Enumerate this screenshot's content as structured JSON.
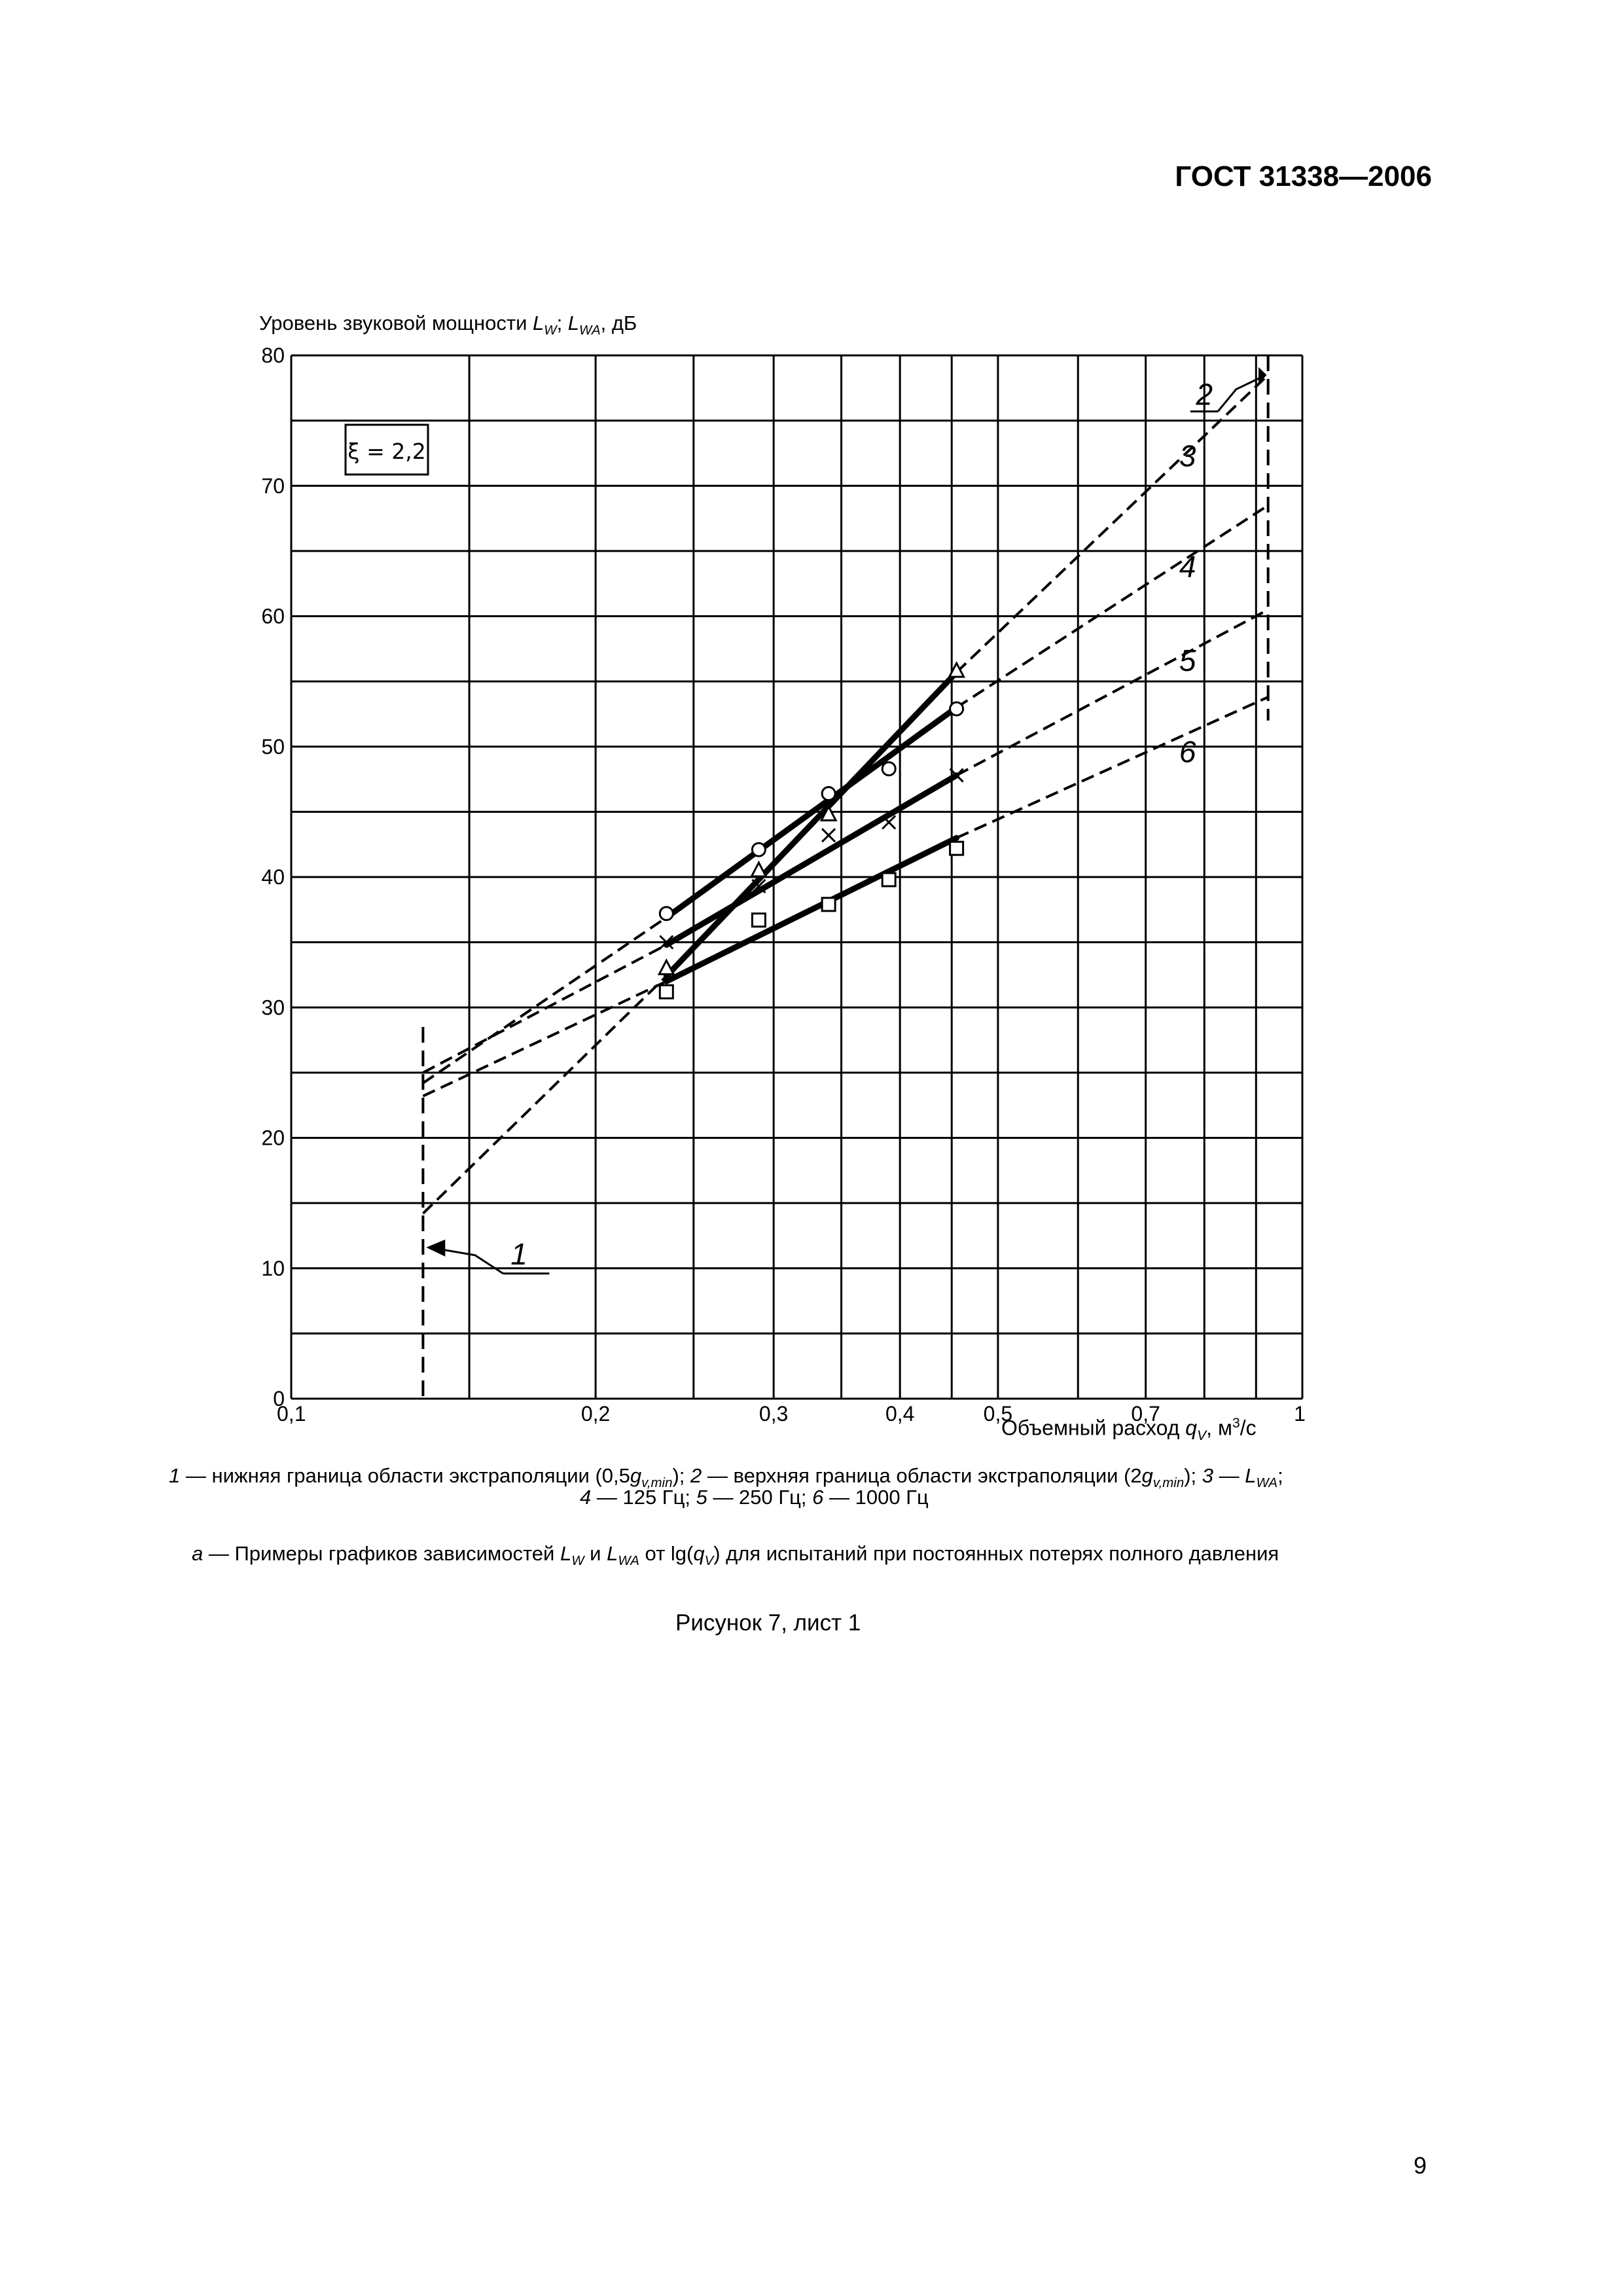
{
  "document": {
    "header": "ГОСТ 31338—2006",
    "page_number": "9",
    "figure_title": "Рисунок 7, лист 1"
  },
  "axes": {
    "ylabel_parts": [
      "Уровень звуковой мощности ",
      "L",
      "W",
      "; ",
      "L",
      "WA",
      ", дБ"
    ],
    "xlabel_parts": [
      "Объемный расход ",
      "q",
      "V",
      ", м",
      "3",
      "/с"
    ]
  },
  "legend_box": "ξ = 2,2",
  "caption": {
    "line1_parts": [
      "1",
      " — нижняя граница области экстраполяции (0,5",
      "g",
      "v,min",
      "); ",
      "2",
      " — верхняя граница области экстраполяции (2",
      "g",
      "v,min",
      "); ",
      "3",
      " — ",
      "L",
      "WA",
      ";"
    ],
    "line2_parts": [
      "4",
      " — 125 Гц; ",
      "5",
      " — 250 Гц; ",
      "6",
      " — 1000 Гц"
    ],
    "note_parts": [
      "a",
      " — Примеры графиков зависимостей ",
      "L",
      "W",
      " и ",
      "L",
      "WA",
      " от lg(",
      "q",
      "V",
      ") для испытаний при постоянных потерях полного давления"
    ]
  },
  "chart_data": {
    "type": "line",
    "x_scale": "log",
    "xlim": [
      0.1,
      1
    ],
    "ylim": [
      0,
      80
    ],
    "x_ticks": [
      {
        "value": 0.1,
        "label": "0,1"
      },
      {
        "value": 0.2,
        "label": "0,2"
      },
      {
        "value": 0.3,
        "label": "0,3"
      },
      {
        "value": 0.4,
        "label": "0,4"
      },
      {
        "value": 0.5,
        "label": "0,5"
      },
      {
        "value": 0.7,
        "label": "0,7"
      },
      {
        "value": 1,
        "label": "1"
      }
    ],
    "x_grid": [
      0.1,
      0.15,
      0.2,
      0.25,
      0.3,
      0.35,
      0.4,
      0.45,
      0.5,
      0.6,
      0.7,
      0.8,
      0.9,
      1
    ],
    "y_ticks": [
      {
        "value": 0,
        "label": "0"
      },
      {
        "value": 10,
        "label": "10"
      },
      {
        "value": 20,
        "label": "20"
      },
      {
        "value": 30,
        "label": "30"
      },
      {
        "value": 40,
        "label": "40"
      },
      {
        "value": 50,
        "label": "50"
      },
      {
        "value": 60,
        "label": "60"
      },
      {
        "value": 70,
        "label": "70"
      },
      {
        "value": 80,
        "label": "80"
      }
    ],
    "y_grid": [
      0,
      5,
      10,
      15,
      20,
      25,
      30,
      35,
      40,
      45,
      50,
      55,
      60,
      65,
      70,
      75,
      80
    ],
    "grid": true,
    "boundaries": [
      {
        "label": "1",
        "x": 0.135
      },
      {
        "label": "2",
        "x": 0.925
      }
    ],
    "series": [
      {
        "label": "3",
        "marker": "triangle",
        "points": [
          [
            0.235,
            33
          ],
          [
            0.29,
            40.5
          ],
          [
            0.34,
            44.8
          ],
          [
            0.455,
            55.8
          ]
        ],
        "fit": {
          "solid": [
            0.235,
            0.455
          ],
          "dashed": [
            0.135,
            0.925
          ],
          "y_at": [
            [
              0.135,
              14.2
            ],
            [
              0.235,
              32.4
            ],
            [
              0.455,
              55.7
            ],
            [
              0.925,
              78.5
            ]
          ]
        }
      },
      {
        "label": "4",
        "marker": "circle",
        "points": [
          [
            0.235,
            37.2
          ],
          [
            0.29,
            42.1
          ],
          [
            0.34,
            46.4
          ],
          [
            0.39,
            48.3
          ],
          [
            0.455,
            52.9
          ]
        ],
        "fit": {
          "solid": [
            0.235,
            0.455
          ],
          "dashed": [
            0.135,
            0.925
          ],
          "y_at": [
            [
              0.135,
              24.2
            ],
            [
              0.235,
              36.9
            ],
            [
              0.455,
              53
            ],
            [
              0.925,
              68.5
            ]
          ]
        }
      },
      {
        "label": "5",
        "marker": "cross",
        "points": [
          [
            0.235,
            35
          ],
          [
            0.29,
            39.3
          ],
          [
            0.34,
            43.2
          ],
          [
            0.39,
            44.2
          ],
          [
            0.455,
            47.8
          ]
        ],
        "fit": {
          "solid": [
            0.235,
            0.455
          ],
          "dashed": [
            0.135,
            0.925
          ],
          "y_at": [
            [
              0.135,
              25
            ],
            [
              0.235,
              34.8
            ],
            [
              0.455,
              47.8
            ],
            [
              0.925,
              60.5
            ]
          ]
        }
      },
      {
        "label": "6",
        "marker": "square",
        "points": [
          [
            0.235,
            31.2
          ],
          [
            0.29,
            36.7
          ],
          [
            0.34,
            37.9
          ],
          [
            0.39,
            39.8
          ],
          [
            0.455,
            42.2
          ]
        ],
        "fit": {
          "solid": [
            0.235,
            0.455
          ],
          "dashed": [
            0.135,
            0.925
          ],
          "y_at": [
            [
              0.135,
              23.2
            ],
            [
              0.235,
              32
            ],
            [
              0.455,
              43
            ],
            [
              0.925,
              53.8
            ]
          ]
        }
      }
    ]
  }
}
